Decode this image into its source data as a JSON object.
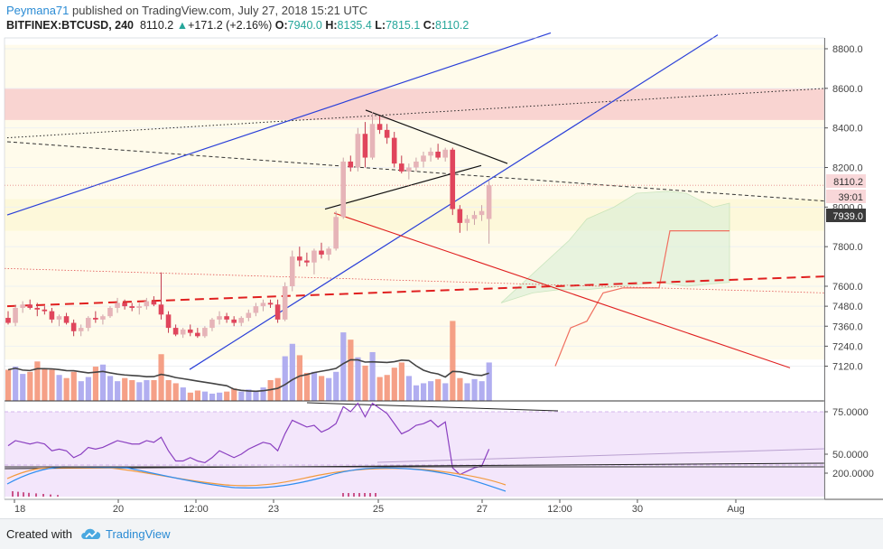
{
  "header": {
    "author": "Peymana71",
    "published_text": " published on TradingView.com, July 27, 2018 15:21 UTC",
    "symbol": "BITFINEX:BTCUSD, 240",
    "last": "8110.2",
    "change": "+171.2 (+2.16%)",
    "o_label": "O:",
    "o": "7940.0",
    "h_label": "H:",
    "h": "8135.4",
    "l_label": "L:",
    "l": "7815.1",
    "c_label": "C:",
    "c": "8110.2"
  },
  "footer": {
    "created_with": "Created with",
    "brand": "TradingView",
    "logo_icon": "tradingview-cloud-icon"
  },
  "chart_data": {
    "type": "candlestick",
    "symbol": "BITFINEX:BTCUSD",
    "interval": "240",
    "price_axis": {
      "ticks": [
        "8800.0",
        "8600.0",
        "8400.0",
        "8200.0",
        "8000.0",
        "7800.0",
        "7600.0",
        "7480.0",
        "7360.0",
        "7240.0",
        "7120.0"
      ],
      "labels": [
        {
          "value": "8110.2",
          "price": 8110.2,
          "bg": "#f8d7d9",
          "color": "#333333"
        },
        {
          "value": "39:01",
          "price": 8010,
          "bg": "#f8d7d9",
          "color": "#333333"
        },
        {
          "value": "7939.0",
          "price": 7939,
          "bg": "#3a3a3a",
          "color": "#ffffff"
        }
      ]
    },
    "rsi_axis": {
      "ticks": [
        "75.0000",
        "50.0000"
      ]
    },
    "macd_axis": {
      "ticks": [
        "200.0000"
      ]
    },
    "time_axis": {
      "ticks": [
        "18",
        "20",
        "12:00",
        "23",
        "25",
        "27",
        "12:00",
        "30",
        "Aug"
      ]
    },
    "candles": [
      [
        7410,
        7450,
        7370,
        7380
      ],
      [
        7380,
        7490,
        7360,
        7470
      ],
      [
        7470,
        7510,
        7440,
        7490
      ],
      [
        7490,
        7520,
        7460,
        7470
      ],
      [
        7470,
        7500,
        7420,
        7460
      ],
      [
        7460,
        7480,
        7430,
        7450
      ],
      [
        7450,
        7470,
        7380,
        7400
      ],
      [
        7400,
        7430,
        7360,
        7420
      ],
      [
        7420,
        7440,
        7370,
        7380
      ],
      [
        7380,
        7400,
        7300,
        7330
      ],
      [
        7330,
        7370,
        7300,
        7350
      ],
      [
        7350,
        7420,
        7330,
        7410
      ],
      [
        7410,
        7450,
        7380,
        7400
      ],
      [
        7400,
        7430,
        7370,
        7420
      ],
      [
        7420,
        7480,
        7410,
        7470
      ],
      [
        7470,
        7530,
        7440,
        7500
      ],
      [
        7500,
        7520,
        7460,
        7480
      ],
      [
        7480,
        7500,
        7450,
        7470
      ],
      [
        7470,
        7500,
        7430,
        7480
      ],
      [
        7480,
        7530,
        7460,
        7510
      ],
      [
        7510,
        7540,
        7480,
        7490
      ],
      [
        7490,
        7670,
        7400,
        7430
      ],
      [
        7430,
        7450,
        7320,
        7350
      ],
      [
        7350,
        7370,
        7300,
        7310
      ],
      [
        7310,
        7350,
        7290,
        7340
      ],
      [
        7340,
        7370,
        7300,
        7320
      ],
      [
        7320,
        7350,
        7290,
        7300
      ],
      [
        7300,
        7360,
        7290,
        7350
      ],
      [
        7350,
        7410,
        7330,
        7400
      ],
      [
        7400,
        7450,
        7370,
        7420
      ],
      [
        7420,
        7440,
        7380,
        7400
      ],
      [
        7400,
        7420,
        7360,
        7380
      ],
      [
        7380,
        7420,
        7360,
        7410
      ],
      [
        7410,
        7460,
        7390,
        7440
      ],
      [
        7440,
        7500,
        7420,
        7480
      ],
      [
        7480,
        7520,
        7450,
        7500
      ],
      [
        7500,
        7520,
        7470,
        7490
      ],
      [
        7490,
        7520,
        7380,
        7400
      ],
      [
        7400,
        7620,
        7390,
        7600
      ],
      [
        7600,
        7780,
        7570,
        7750
      ],
      [
        7750,
        7800,
        7700,
        7730
      ],
      [
        7730,
        7770,
        7700,
        7720
      ],
      [
        7720,
        7790,
        7660,
        7780
      ],
      [
        7780,
        7820,
        7740,
        7760
      ],
      [
        7760,
        7800,
        7730,
        7790
      ],
      [
        7790,
        7980,
        7780,
        7950
      ],
      [
        7950,
        8250,
        7940,
        8230
      ],
      [
        8230,
        8260,
        8180,
        8200
      ],
      [
        8200,
        8400,
        8180,
        8370
      ],
      [
        8370,
        8430,
        8200,
        8250
      ],
      [
        8250,
        8480,
        8240,
        8420
      ],
      [
        8420,
        8460,
        8370,
        8390
      ],
      [
        8390,
        8420,
        8320,
        8350
      ],
      [
        8350,
        8380,
        8200,
        8220
      ],
      [
        8220,
        8260,
        8170,
        8180
      ],
      [
        8180,
        8220,
        8140,
        8200
      ],
      [
        8200,
        8250,
        8180,
        8230
      ],
      [
        8230,
        8280,
        8200,
        8260
      ],
      [
        8260,
        8300,
        8230,
        8280
      ],
      [
        8280,
        8320,
        8240,
        8250
      ],
      [
        8250,
        8300,
        8230,
        8290
      ],
      [
        8290,
        8300,
        7960,
        7990
      ],
      [
        7990,
        8010,
        7870,
        7920
      ],
      [
        7920,
        7960,
        7880,
        7940
      ],
      [
        7940,
        7980,
        7910,
        7960
      ],
      [
        7960,
        8010,
        7930,
        7980
      ],
      [
        7940,
        8135.4,
        7815.1,
        8110.2
      ]
    ],
    "volumes": [
      0.3,
      0.33,
      0.26,
      0.28,
      0.38,
      0.31,
      0.3,
      0.25,
      0.22,
      0.28,
      0.19,
      0.23,
      0.33,
      0.35,
      0.24,
      0.19,
      0.22,
      0.2,
      0.18,
      0.2,
      0.2,
      0.45,
      0.2,
      0.17,
      0.13,
      0.08,
      0.1,
      0.09,
      0.07,
      0.08,
      0.09,
      0.12,
      0.09,
      0.11,
      0.1,
      0.13,
      0.2,
      0.22,
      0.43,
      0.55,
      0.44,
      0.27,
      0.28,
      0.24,
      0.22,
      0.28,
      0.66,
      0.59,
      0.42,
      0.34,
      0.47,
      0.23,
      0.25,
      0.32,
      0.37,
      0.24,
      0.15,
      0.17,
      0.19,
      0.21,
      0.17,
      0.77,
      0.22,
      0.17,
      0.21,
      0.19,
      0.37
    ],
    "rsi": [
      55,
      58,
      57,
      56,
      57,
      56,
      52,
      53,
      52,
      48,
      50,
      54,
      53,
      54,
      56,
      58,
      57,
      56,
      56,
      58,
      57,
      60,
      52,
      46,
      46,
      48,
      46,
      45,
      48,
      52,
      50,
      48,
      50,
      53,
      55,
      57,
      56,
      52,
      62,
      70,
      68,
      66,
      67,
      63,
      65,
      68,
      78,
      75,
      80,
      72,
      80,
      77,
      74,
      68,
      62,
      64,
      67,
      68,
      70,
      66,
      69,
      42,
      38,
      40,
      42,
      43,
      53
    ],
    "ichimoku_cloud": {
      "top": [
        [
          630,
          7830
        ],
        [
          650,
          7940
        ],
        [
          680,
          8000
        ],
        [
          705,
          8070
        ],
        [
          740,
          8080
        ],
        [
          760,
          8070
        ],
        [
          790,
          8000
        ],
        [
          808,
          8020
        ]
      ],
      "bottom": [
        [
          555,
          7500
        ],
        [
          590,
          7560
        ],
        [
          620,
          7580
        ],
        [
          650,
          7580
        ],
        [
          690,
          7600
        ],
        [
          730,
          7620
        ],
        [
          760,
          7600
        ],
        [
          808,
          7620
        ]
      ]
    },
    "levels": {
      "resistance_zone": [
        8440,
        8600
      ],
      "blue_channel_upper": [
        [
          8,
          7960
        ],
        [
          610,
          8880
        ]
      ],
      "blue_channel_lower": [
        [
          210,
          7100
        ],
        [
          795,
          8870
        ]
      ],
      "red_descending": [
        [
          370,
          7970
        ],
        [
          875,
          7110
        ]
      ],
      "red_dashed_trend": [
        [
          8,
          7480
        ],
        [
          915,
          7650
        ]
      ],
      "black_dashed_trend": [
        [
          8,
          8330
        ],
        [
          915,
          8030
        ]
      ],
      "black_dotted_trend": [
        [
          8,
          8350
        ],
        [
          915,
          8600
        ]
      ],
      "triangle_upper": [
        [
          405,
          8490
        ],
        [
          562,
          8220
        ]
      ],
      "triangle_lower": [
        [
          360,
          7990
        ],
        [
          533,
          8210
        ]
      ],
      "price_line": 8110.2
    }
  }
}
